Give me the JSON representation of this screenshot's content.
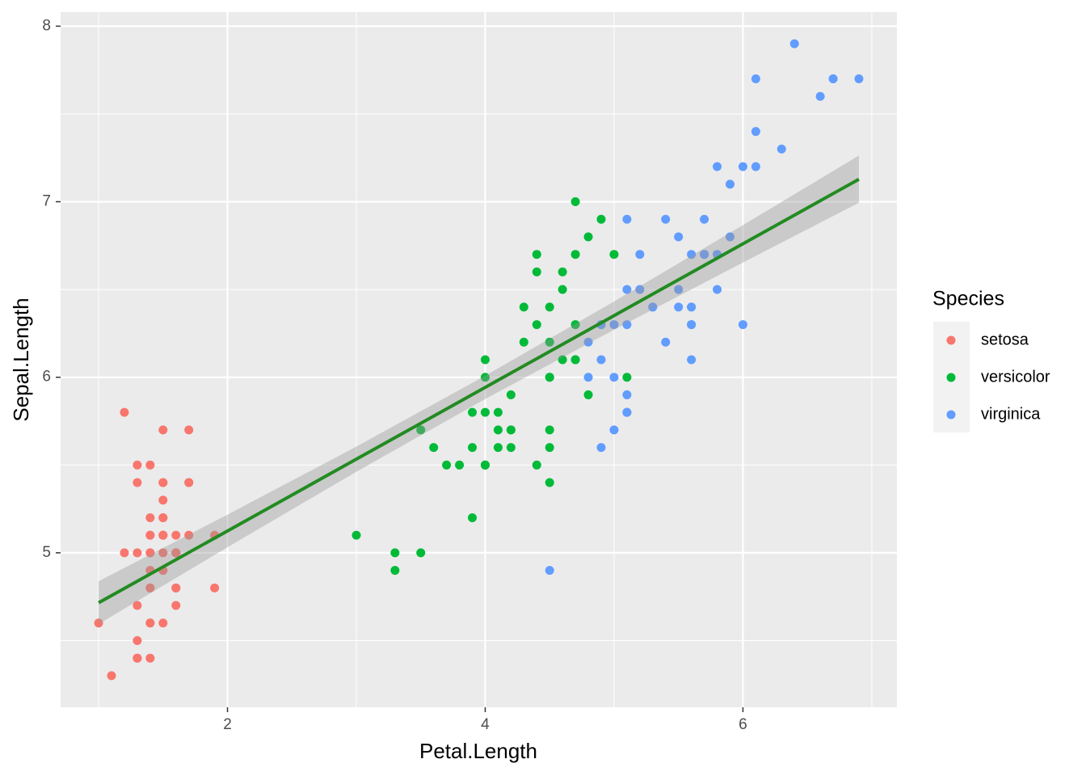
{
  "chart_data": {
    "type": "scatter",
    "x_label": "Petal.Length",
    "y_label": "Sepal.Length",
    "legend_title": "Species",
    "legend_position": "right",
    "grid": true,
    "xlim": [
      0.705,
      7.195
    ],
    "ylim": [
      4.12,
      8.08
    ],
    "xticks": [
      2,
      4,
      6
    ],
    "yticks": [
      5,
      6,
      7,
      8
    ],
    "x_minor_grid": [
      1,
      3,
      5,
      7
    ],
    "y_minor_grid": [
      4.5,
      5.5,
      6.5,
      7.5
    ],
    "series": [
      {
        "name": "setosa",
        "color": "#F8766D",
        "x": [
          1.4,
          1.4,
          1.3,
          1.5,
          1.4,
          1.7,
          1.4,
          1.5,
          1.4,
          1.5,
          1.5,
          1.6,
          1.4,
          1.1,
          1.2,
          1.5,
          1.3,
          1.4,
          1.7,
          1.5,
          1.7,
          1.5,
          1.0,
          1.7,
          1.9,
          1.6,
          1.6,
          1.5,
          1.4,
          1.6,
          1.6,
          1.5,
          1.5,
          1.4,
          1.5,
          1.2,
          1.3,
          1.4,
          1.3,
          1.5,
          1.3,
          1.3,
          1.3,
          1.6,
          1.9,
          1.4,
          1.6,
          1.4,
          1.5,
          1.4
        ],
        "values": [
          5.1,
          4.9,
          4.7,
          4.6,
          5.0,
          5.4,
          4.6,
          5.0,
          4.4,
          4.9,
          5.4,
          4.8,
          4.8,
          4.3,
          5.8,
          5.7,
          5.4,
          5.1,
          5.7,
          5.1,
          5.4,
          5.1,
          4.6,
          5.1,
          4.8,
          5.0,
          5.0,
          5.2,
          5.2,
          4.7,
          4.8,
          5.4,
          5.2,
          5.5,
          4.9,
          5.0,
          5.5,
          4.9,
          4.4,
          5.1,
          5.0,
          4.5,
          4.4,
          5.0,
          5.1,
          4.8,
          5.1,
          4.6,
          5.3,
          5.0
        ]
      },
      {
        "name": "versicolor",
        "color": "#00BA38",
        "x": [
          4.7,
          4.5,
          4.9,
          4.0,
          4.6,
          4.5,
          4.7,
          3.3,
          4.6,
          3.9,
          3.5,
          4.2,
          4.0,
          4.7,
          3.6,
          4.4,
          4.5,
          4.1,
          4.5,
          3.9,
          4.8,
          4.0,
          4.9,
          4.7,
          4.3,
          4.4,
          4.8,
          5.0,
          4.5,
          3.5,
          3.8,
          3.7,
          3.9,
          5.1,
          4.5,
          4.5,
          4.7,
          4.4,
          4.1,
          4.0,
          4.4,
          4.6,
          4.0,
          3.3,
          4.2,
          4.2,
          4.2,
          4.3,
          3.0,
          4.1
        ],
        "values": [
          7.0,
          6.4,
          6.9,
          5.5,
          6.5,
          5.7,
          6.3,
          4.9,
          6.6,
          5.2,
          5.0,
          5.9,
          6.0,
          6.1,
          5.6,
          6.7,
          5.6,
          5.8,
          6.2,
          5.6,
          5.9,
          6.1,
          6.3,
          6.1,
          6.4,
          6.6,
          6.8,
          6.7,
          6.0,
          5.7,
          5.5,
          5.5,
          5.8,
          6.0,
          5.4,
          6.0,
          6.7,
          6.3,
          5.6,
          5.5,
          5.5,
          6.1,
          5.8,
          5.0,
          5.6,
          5.7,
          5.7,
          6.2,
          5.1,
          5.7
        ]
      },
      {
        "name": "virginica",
        "color": "#619CFF",
        "x": [
          6.0,
          5.1,
          5.9,
          5.6,
          5.8,
          6.6,
          4.5,
          6.3,
          5.8,
          6.1,
          5.1,
          5.3,
          5.5,
          5.0,
          5.1,
          5.3,
          5.5,
          6.7,
          6.9,
          5.0,
          5.7,
          4.9,
          6.7,
          4.9,
          5.7,
          6.0,
          4.8,
          4.9,
          5.6,
          5.8,
          6.1,
          6.4,
          5.6,
          5.1,
          5.6,
          6.1,
          5.6,
          5.5,
          4.8,
          5.4,
          5.6,
          5.1,
          5.1,
          5.9,
          5.7,
          5.2,
          5.0,
          5.2,
          5.4,
          5.1
        ],
        "values": [
          6.3,
          5.8,
          7.1,
          6.3,
          6.5,
          7.6,
          4.9,
          7.3,
          6.7,
          7.2,
          6.5,
          6.4,
          6.8,
          5.7,
          5.8,
          6.4,
          6.5,
          7.7,
          7.7,
          6.0,
          6.9,
          5.6,
          7.7,
          6.3,
          6.7,
          7.2,
          6.2,
          6.1,
          6.4,
          7.2,
          7.4,
          7.9,
          6.4,
          6.3,
          6.1,
          7.7,
          6.3,
          6.4,
          6.0,
          6.9,
          6.7,
          6.9,
          5.8,
          6.8,
          6.7,
          6.7,
          6.3,
          6.5,
          6.2,
          5.9
        ]
      }
    ],
    "fit": {
      "color": "#228B22",
      "band_color": "#999999",
      "x": [
        1.0,
        2.0,
        3.0,
        4.0,
        5.0,
        6.0,
        6.9
      ],
      "values": [
        4.7155,
        5.1244,
        5.5334,
        5.9423,
        6.3512,
        6.7601,
        7.1281
      ],
      "lower": [
        4.594,
        5.0315,
        5.4619,
        5.876,
        6.2708,
        6.6537,
        6.994
      ],
      "upper": [
        4.838,
        5.2173,
        5.6049,
        6.0086,
        6.4316,
        6.8665,
        7.263
      ]
    }
  }
}
